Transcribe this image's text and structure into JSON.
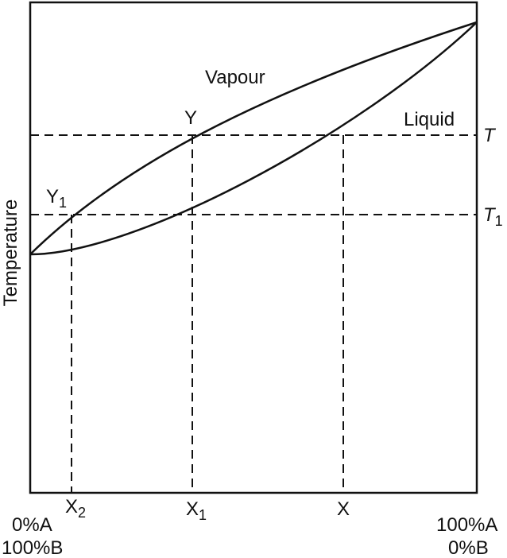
{
  "diagram": {
    "curves": {
      "vapour_label": "Vapour",
      "liquid_label": "Liquid"
    },
    "points": {
      "y_label": "Y",
      "y1_label": "Y",
      "y1_sub": "1"
    },
    "right_axis": {
      "t_label": "T",
      "t1_label": "T",
      "t1_sub": "1"
    },
    "bottom_axis": {
      "x2_label": "X",
      "x2_sub": "2",
      "x1_label": "X",
      "x1_sub": "1",
      "x_label": "X",
      "left_line1": "0%A",
      "left_line2": "100%B",
      "right_line1": "100%A",
      "right_line2": "0%B"
    },
    "y_axis_label": "Temperature"
  }
}
